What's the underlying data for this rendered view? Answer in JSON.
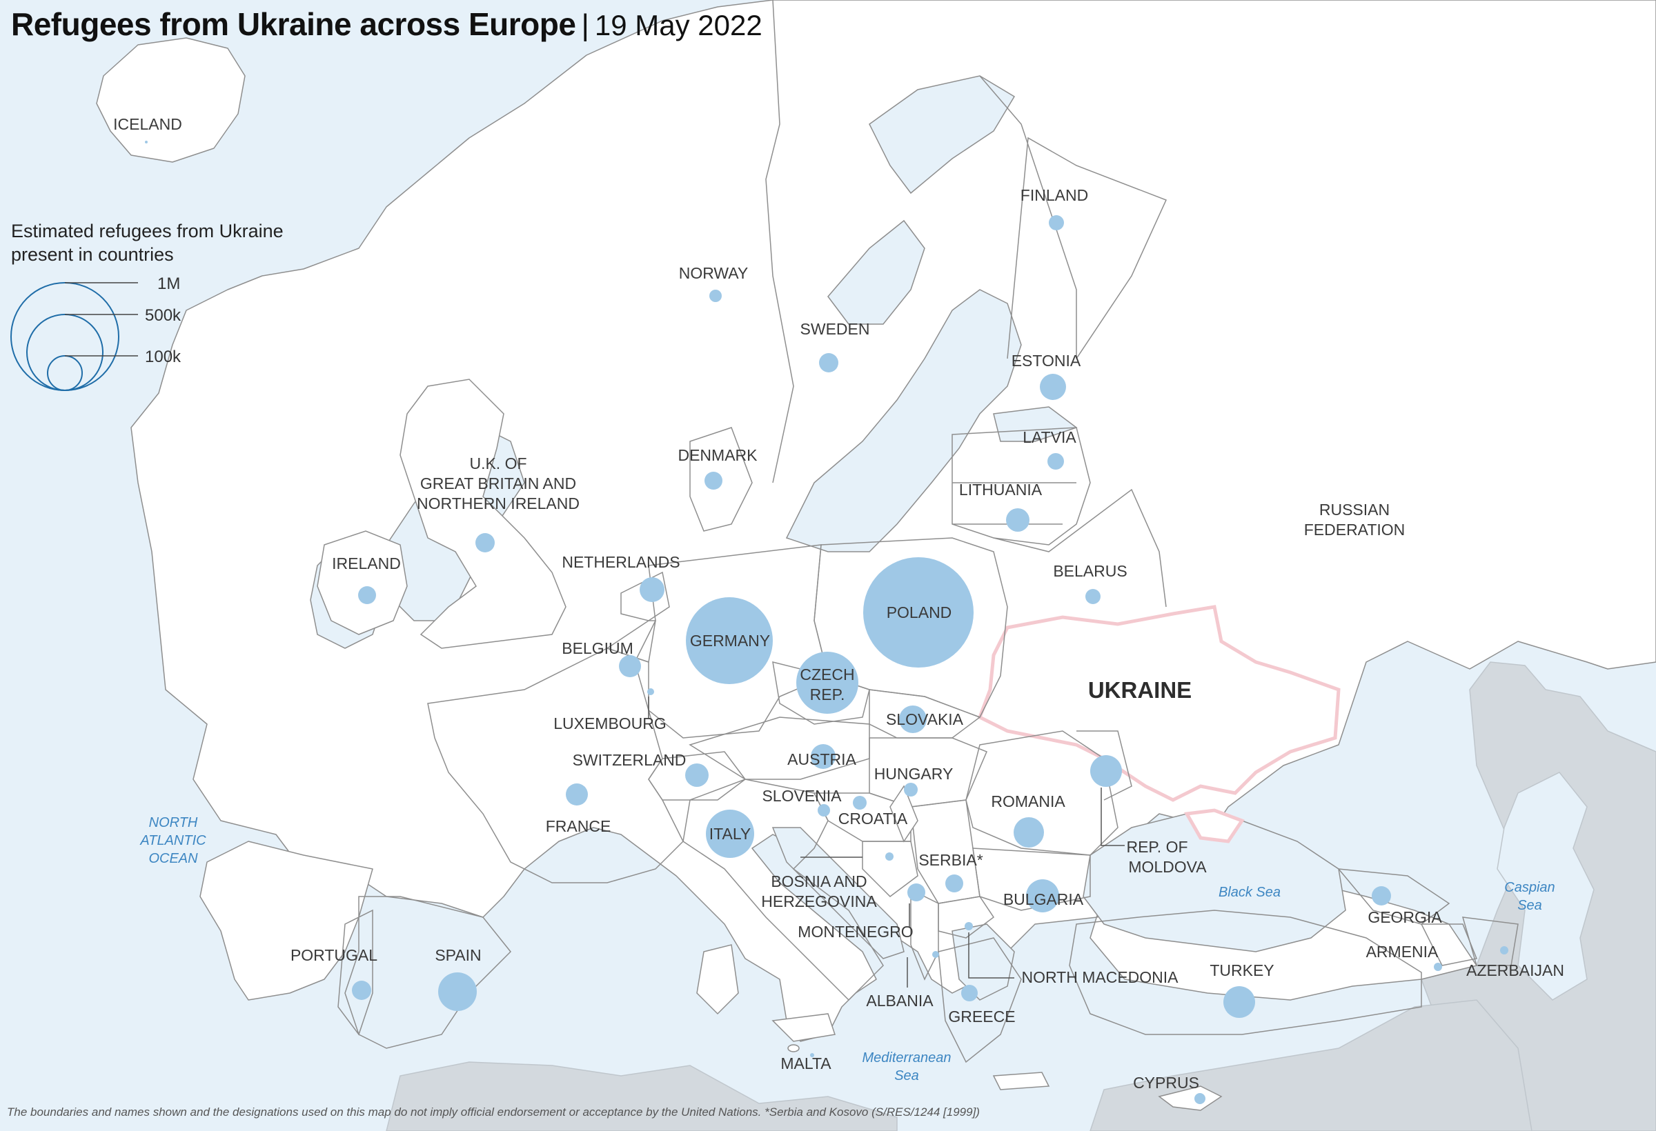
{
  "title": "Refugees from Ukraine across Europe",
  "title_separator": "|",
  "date": "19 May 2022",
  "legend": {
    "title_line1": "Estimated refugees from Ukraine",
    "title_line2": "present in countries",
    "scale": [
      {
        "label": "1M",
        "value": 1000000
      },
      {
        "label": "500k",
        "value": 500000
      },
      {
        "label": "100k",
        "value": 100000
      }
    ]
  },
  "highlight_country": "UKRAINE",
  "countries": [
    {
      "label": "ICELAND"
    },
    {
      "label": "NORWAY"
    },
    {
      "label": "SWEDEN"
    },
    {
      "label": "FINLAND"
    },
    {
      "label": "ESTONIA"
    },
    {
      "label": "LATVIA"
    },
    {
      "label": "LITHUANIA"
    },
    {
      "label": "DENMARK"
    },
    {
      "label": "U.K. OF"
    },
    {
      "label": "GREAT BRITAIN AND"
    },
    {
      "label": "NORTHERN IRELAND"
    },
    {
      "label": "IRELAND"
    },
    {
      "label": "NETHERLANDS"
    },
    {
      "label": "BELGIUM"
    },
    {
      "label": "LUXEMBOURG"
    },
    {
      "label": "GERMANY"
    },
    {
      "label": "POLAND"
    },
    {
      "label": "BELARUS"
    },
    {
      "label": "RUSSIAN"
    },
    {
      "label": "FEDERATION"
    },
    {
      "label": "CZECH"
    },
    {
      "label": "REP."
    },
    {
      "label": "SLOVAKIA"
    },
    {
      "label": "AUSTRIA"
    },
    {
      "label": "HUNGARY"
    },
    {
      "label": "SWITZERLAND"
    },
    {
      "label": "FRANCE"
    },
    {
      "label": "SLOVENIA"
    },
    {
      "label": "CROATIA"
    },
    {
      "label": "ROMANIA"
    },
    {
      "label": "REP. OF"
    },
    {
      "label": "MOLDOVA"
    },
    {
      "label": "ITALY"
    },
    {
      "label": "SERBIA*"
    },
    {
      "label": "BOSNIA AND"
    },
    {
      "label": "HERZEGOVINA"
    },
    {
      "label": "BULGARIA"
    },
    {
      "label": "MONTENEGRO"
    },
    {
      "label": "NORTH MACEDONIA"
    },
    {
      "label": "ALBANIA"
    },
    {
      "label": "GREECE"
    },
    {
      "label": "PORTUGAL"
    },
    {
      "label": "SPAIN"
    },
    {
      "label": "TURKEY"
    },
    {
      "label": "GEORGIA"
    },
    {
      "label": "ARMENIA"
    },
    {
      "label": "AZERBAIJAN"
    },
    {
      "label": "MALTA"
    },
    {
      "label": "CYPRUS"
    }
  ],
  "seas": [
    {
      "label": "NORTH"
    },
    {
      "label": "ATLANTIC"
    },
    {
      "label": "OCEAN"
    },
    {
      "label": "Black Sea"
    },
    {
      "label": "Caspian"
    },
    {
      "label": "Sea"
    },
    {
      "label": "Mediterranean"
    },
    {
      "label": "Sea"
    }
  ],
  "footnote": "The boundaries and names shown and the designations used on this map do not imply official endorsement or acceptance by the United Nations. *Serbia and Kosovo (S/RES/1244 [1999])",
  "colors": {
    "sea": "#e6f1f9",
    "land": "#ffffff",
    "other_land": "#d3d9de",
    "bubble": "#9fc8e6",
    "legend_stroke": "#1f6da8",
    "ukraine_border": "#f4c9cf"
  }
}
